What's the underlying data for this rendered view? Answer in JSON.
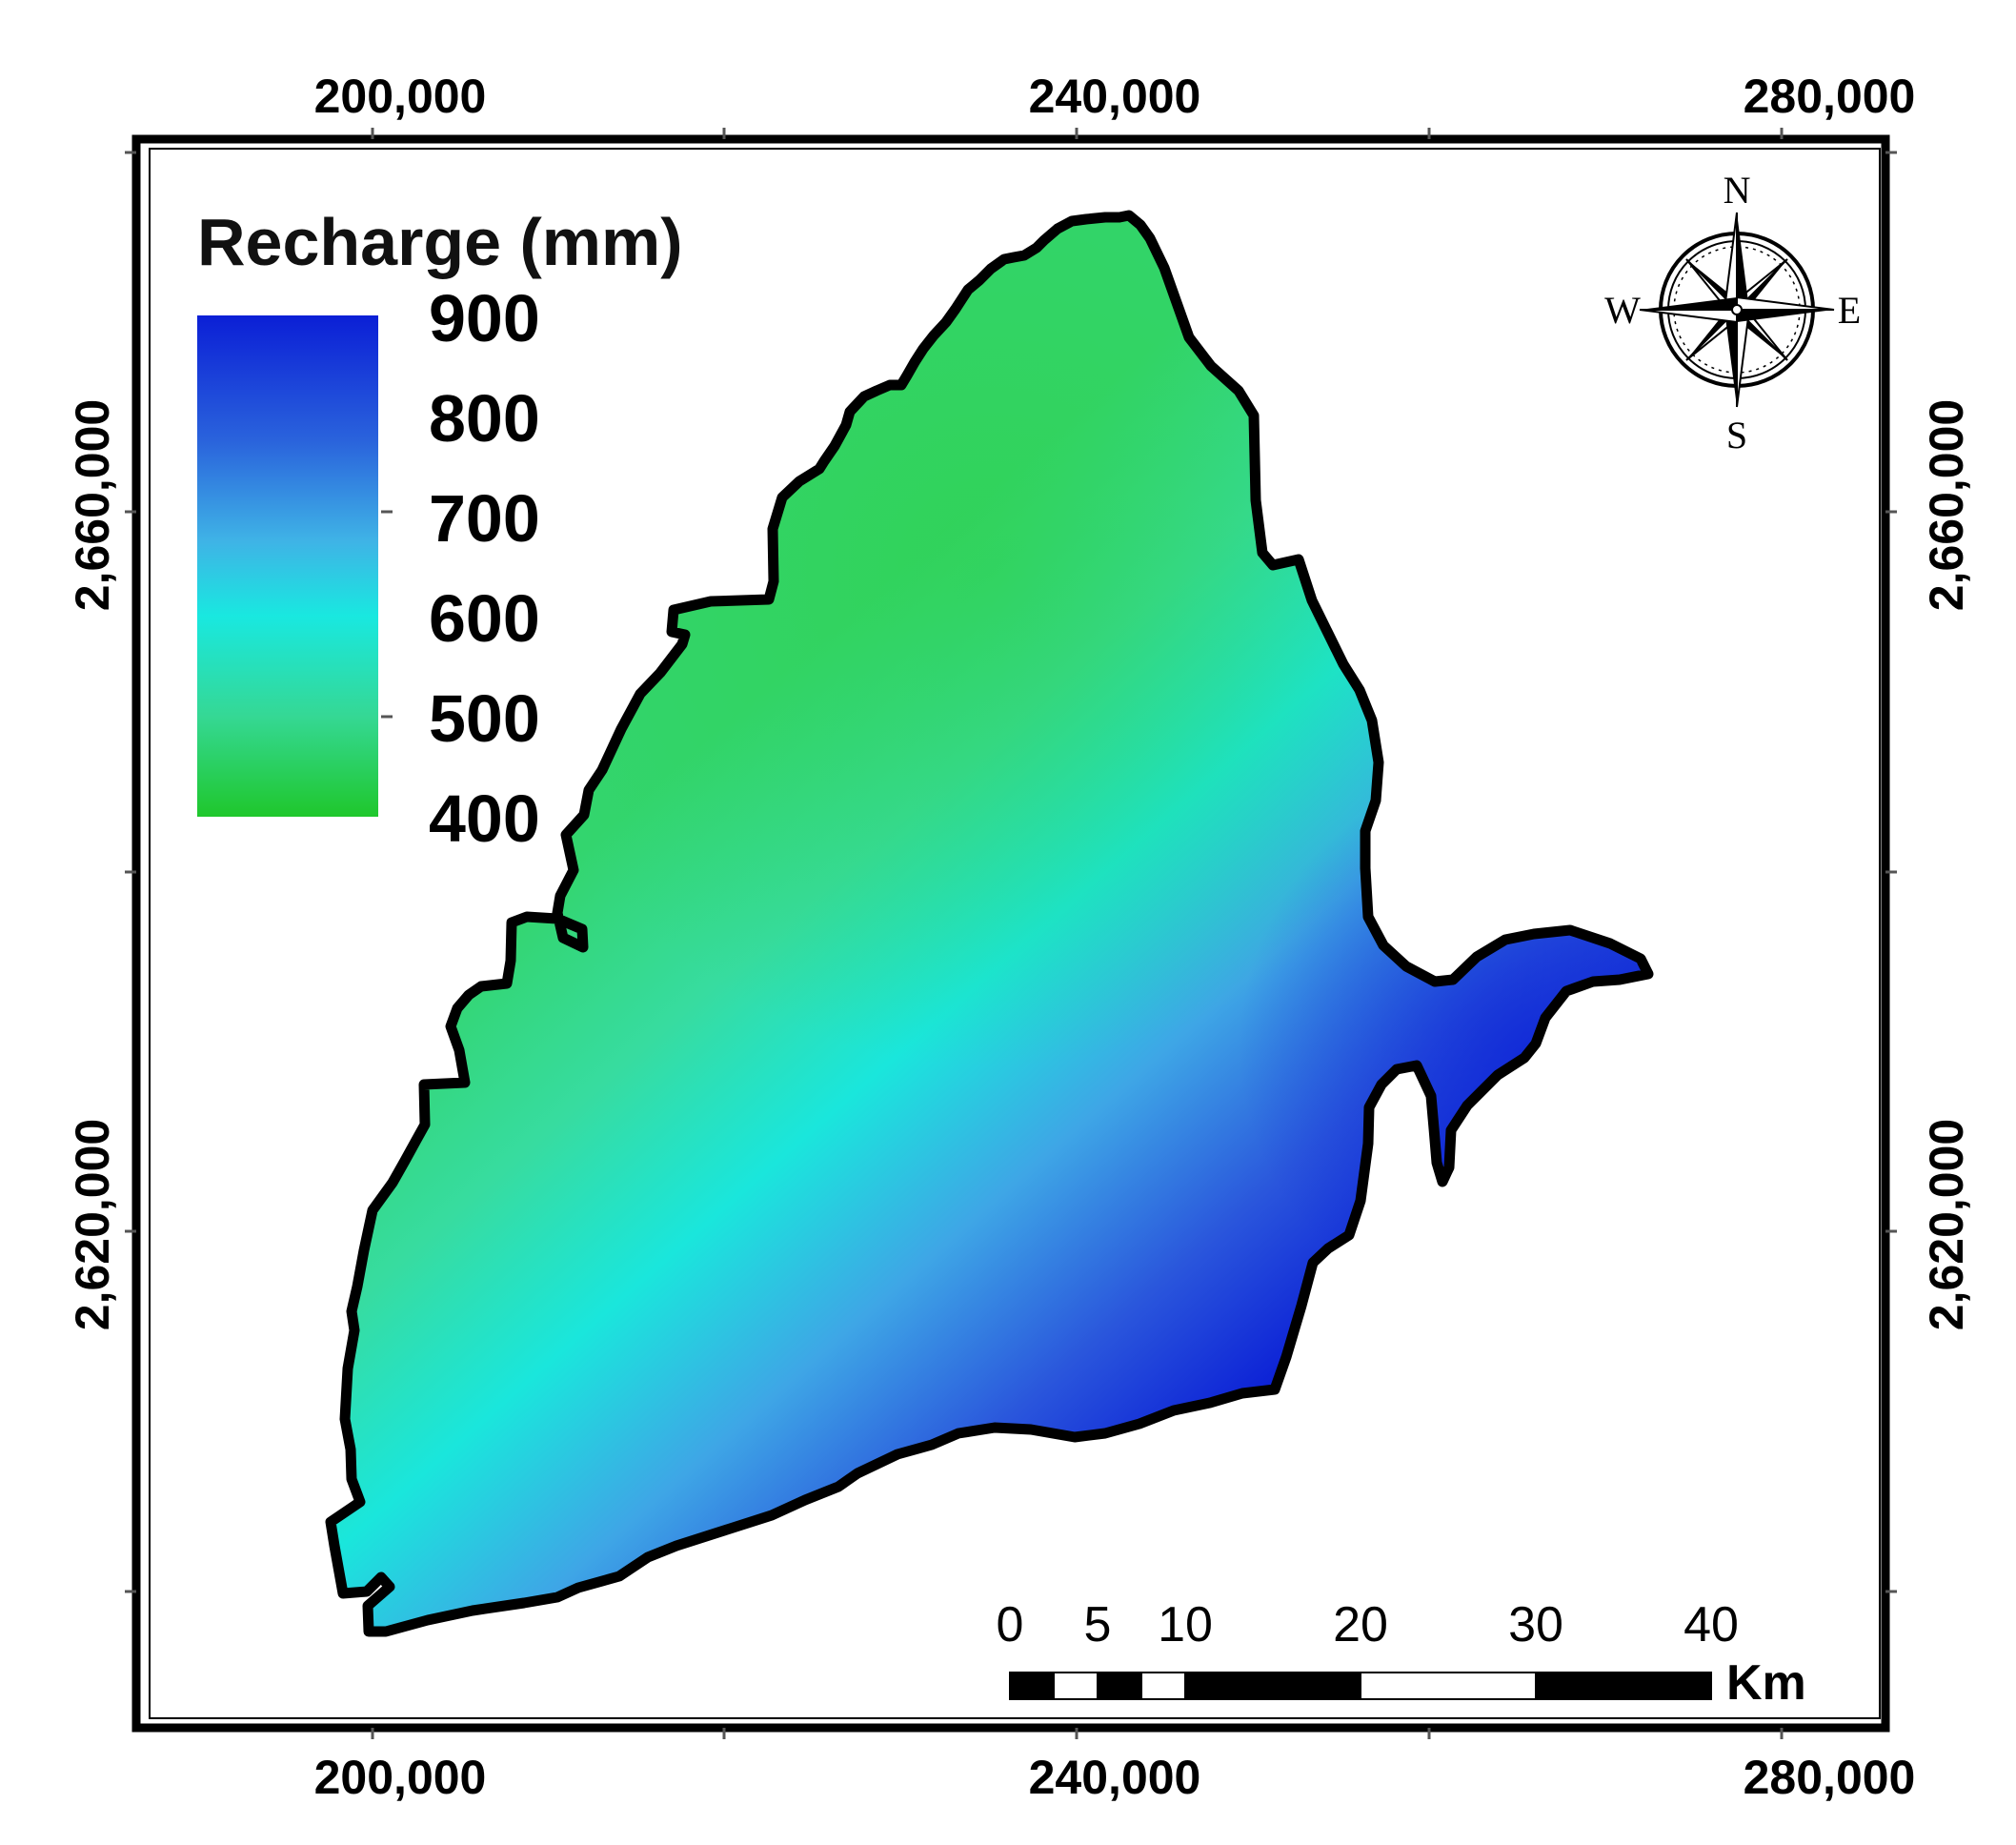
{
  "map": {
    "x_ticks_top": [
      "200,000",
      "240,000",
      "280,000"
    ],
    "x_ticks_bottom": [
      "200,000",
      "240,000",
      "280,000"
    ],
    "y_ticks_left": [
      "2,660,000",
      "2,620,000"
    ],
    "y_ticks_right": [
      "2,660,000",
      "2,620,000"
    ]
  },
  "legend": {
    "title": "Recharge (mm)",
    "values": [
      "900",
      "800",
      "700",
      "600",
      "500",
      "400"
    ],
    "colors": {
      "high": "#0b1fd6",
      "mid_high": "#3b8fe0",
      "mid": "#19e8e0",
      "mid_low": "#35d894",
      "low": "#1fc72c"
    }
  },
  "compass": {
    "north": "N",
    "south": "S",
    "east": "E",
    "west": "W"
  },
  "scalebar": {
    "labels": [
      "0",
      "5",
      "10",
      "20",
      "30",
      "40"
    ],
    "unit": "Km"
  },
  "region": {
    "outline_color": "#000000"
  }
}
